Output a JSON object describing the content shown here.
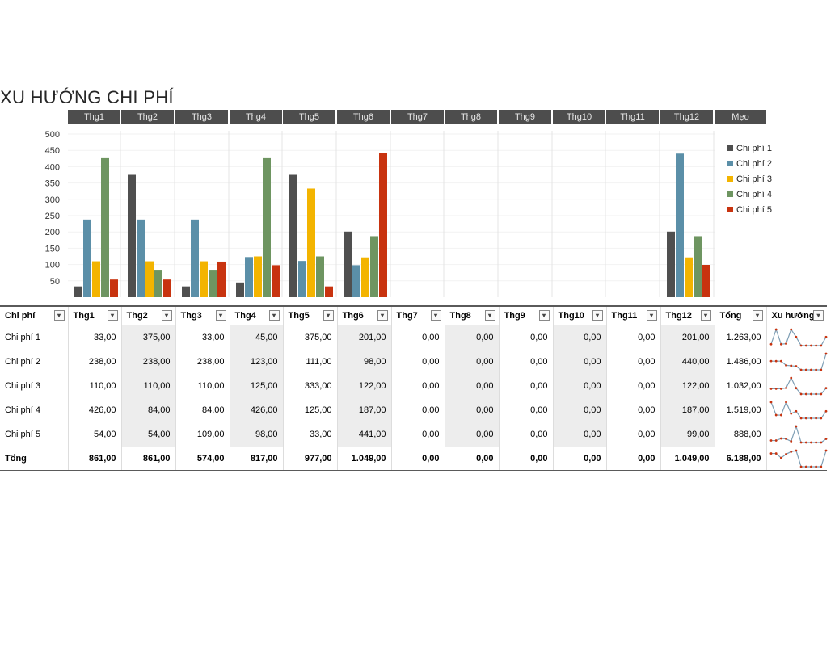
{
  "title": "XU HƯỚNG CHI PHÍ",
  "months": [
    "Thg1",
    "Thg2",
    "Thg3",
    "Thg4",
    "Thg5",
    "Thg6",
    "Thg7",
    "Thg8",
    "Thg9",
    "Thg10",
    "Thg11",
    "Thg12"
  ],
  "tip_label": "Mẹo",
  "chart_data": {
    "type": "bar",
    "categories": [
      "Thg1",
      "Thg2",
      "Thg3",
      "Thg4",
      "Thg5",
      "Thg6",
      "Thg7",
      "Thg8",
      "Thg9",
      "Thg10",
      "Thg11",
      "Thg12"
    ],
    "series": [
      {
        "name": "Chi phí 1",
        "color": "#4f4f4f",
        "values": [
          33,
          375,
          33,
          45,
          375,
          201,
          0,
          0,
          0,
          0,
          0,
          201
        ]
      },
      {
        "name": "Chi phí 2",
        "color": "#5b8fa8",
        "values": [
          238,
          238,
          238,
          123,
          111,
          98,
          0,
          0,
          0,
          0,
          0,
          440
        ]
      },
      {
        "name": "Chi phí 3",
        "color": "#f3b400",
        "values": [
          110,
          110,
          110,
          125,
          333,
          122,
          0,
          0,
          0,
          0,
          0,
          122
        ]
      },
      {
        "name": "Chi phí 4",
        "color": "#6e9561",
        "values": [
          426,
          84,
          84,
          426,
          125,
          187,
          0,
          0,
          0,
          0,
          0,
          187
        ]
      },
      {
        "name": "Chi phí 5",
        "color": "#c8330f",
        "values": [
          54,
          54,
          109,
          98,
          33,
          441,
          0,
          0,
          0,
          0,
          0,
          99
        ]
      }
    ],
    "yticks": [
      50,
      100,
      150,
      200,
      250,
      300,
      350,
      400,
      450,
      500
    ],
    "ylim": [
      0,
      500
    ],
    "legend_position": "right"
  },
  "table": {
    "headers": [
      "Chi phí",
      "Thg1",
      "Thg2",
      "Thg3",
      "Thg4",
      "Thg5",
      "Thg6",
      "Thg7",
      "Thg8",
      "Thg9",
      "Thg10",
      "Thg11",
      "Thg12",
      "Tổng",
      "Xu hướng"
    ],
    "rows": [
      {
        "label": "Chi phí 1",
        "values": [
          "33,00",
          "375,00",
          "33,00",
          "45,00",
          "375,00",
          "201,00",
          "0,00",
          "0,00",
          "0,00",
          "0,00",
          "0,00",
          "201,00"
        ],
        "total": "1.263,00"
      },
      {
        "label": "Chi phí 2",
        "values": [
          "238,00",
          "238,00",
          "238,00",
          "123,00",
          "111,00",
          "98,00",
          "0,00",
          "0,00",
          "0,00",
          "0,00",
          "0,00",
          "440,00"
        ],
        "total": "1.486,00"
      },
      {
        "label": "Chi phí 3",
        "values": [
          "110,00",
          "110,00",
          "110,00",
          "125,00",
          "333,00",
          "122,00",
          "0,00",
          "0,00",
          "0,00",
          "0,00",
          "0,00",
          "122,00"
        ],
        "total": "1.032,00"
      },
      {
        "label": "Chi phí 4",
        "values": [
          "426,00",
          "84,00",
          "84,00",
          "426,00",
          "125,00",
          "187,00",
          "0,00",
          "0,00",
          "0,00",
          "0,00",
          "0,00",
          "187,00"
        ],
        "total": "1.519,00"
      },
      {
        "label": "Chi phí 5",
        "values": [
          "54,00",
          "54,00",
          "109,00",
          "98,00",
          "33,00",
          "441,00",
          "0,00",
          "0,00",
          "0,00",
          "0,00",
          "0,00",
          "99,00"
        ],
        "total": "888,00"
      }
    ],
    "total_row": {
      "label": "Tổng",
      "values": [
        "861,00",
        "861,00",
        "574,00",
        "817,00",
        "977,00",
        "1.049,00",
        "0,00",
        "0,00",
        "0,00",
        "0,00",
        "0,00",
        "1.049,00"
      ],
      "total": "6.188,00"
    },
    "sparklines": [
      [
        33,
        375,
        33,
        45,
        375,
        201,
        0,
        0,
        0,
        0,
        0,
        201
      ],
      [
        238,
        238,
        238,
        123,
        111,
        98,
        0,
        0,
        0,
        0,
        0,
        440
      ],
      [
        110,
        110,
        110,
        125,
        333,
        122,
        0,
        0,
        0,
        0,
        0,
        122
      ],
      [
        426,
        84,
        84,
        426,
        125,
        187,
        0,
        0,
        0,
        0,
        0,
        187
      ],
      [
        54,
        54,
        109,
        98,
        33,
        441,
        0,
        0,
        0,
        0,
        0,
        99
      ],
      [
        861,
        861,
        574,
        817,
        977,
        1049,
        0,
        0,
        0,
        0,
        0,
        1049
      ]
    ],
    "spark_line_color": "#7f9fb5",
    "spark_marker_color": "#c8330f"
  }
}
